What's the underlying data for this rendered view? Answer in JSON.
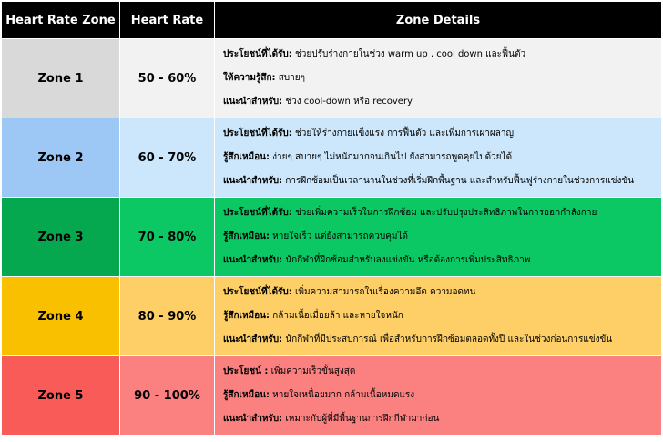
{
  "headers": [
    "Heart Rate Zone",
    "Heart Rate",
    "Zone Details"
  ],
  "rows": [
    {
      "zone": "Zone 1",
      "rate": "50 - 60%",
      "dark": "#d9d9d9",
      "light": "#f2f2f2",
      "details": [
        {
          "label": "ประโยชน์ที่ได้รับ:",
          "text": " ช่วยปรับร่างกายในช่วง warm up , cool down และฟื้นตัว"
        },
        {
          "label": "ให้ความรู้สึก:",
          "text": " สบายๆ"
        },
        {
          "label": "แนะนำสำหรับ:",
          "text": " ช่วง cool-down หรือ recovery"
        }
      ]
    },
    {
      "zone": "Zone 2",
      "rate": "60 - 70%",
      "dark": "#9dc8f5",
      "light": "#cce7fb",
      "details": [
        {
          "label": "ประโยชน์ที่ได้รับ:",
          "text": "  ช่วยให้ร่างกายแข็งแรง การฟื้นตัว และเพิ่มการเผาผลาญ"
        },
        {
          "label": "รู้สึกเหมือน:",
          "text": "  ง่ายๆ สบายๆ ไม่หนักมากจนเกินไป ยังสามารถพูดคุยไปด้วยได้"
        },
        {
          "label": "แนะนำสำหรับ:",
          "text": " การฝึกซ้อมเป็นเวลานานในช่วงที่เริ่มฝึกพื้นฐาน และสำหรับฟื้นฟูร่างกายในช่วงการแข่งขัน"
        }
      ]
    },
    {
      "zone": "Zone 3",
      "rate": "70 - 80%",
      "dark": "#06a84f",
      "light": "#0bc864",
      "details": [
        {
          "label": "ประโยชน์ที่ได้รับ:",
          "text": "  ช่วยเพิ่มความเร็วในการฝึกซ้อม และปรับปรุงประสิทธิภาพในการออกกำลังกาย"
        },
        {
          "label": "รู้สึกเหมือน:",
          "text": " หายใจเร็ว แต่ยังสามารถควบคุมได้"
        },
        {
          "label": "แนะนำสำหรับ:",
          "text": " นักกีฬาที่ฝึกซ้อมสำหรับลงแข่งขัน หรือต้องการเพิ่มประสิทธิภาพ"
        }
      ]
    },
    {
      "zone": "Zone 4",
      "rate": "80 - 90%",
      "dark": "#f9c000",
      "light": "#fdcf66",
      "details": [
        {
          "label": "ประโยชน์ที่ได้รับ:",
          "text": " เพิ่มความสามารถในเรื่องความอึด ความอดทน"
        },
        {
          "label": "รู้สึกเหมือน:",
          "text": " กล้ามเนื้อเมื่อยล้า และหายใจหนัก"
        },
        {
          "label": "แนะนำสำหรับ:",
          "text": " นักกีฬาที่มีประสบการณ์ เพื่อสำหรับการฝึกซ้อมตลอดทั้งปี และในช่วงก่อนการแข่งขัน"
        }
      ]
    },
    {
      "zone": "Zone 5",
      "rate": "90 - 100%",
      "dark": "#f95b59",
      "light": "#fb8080",
      "details": [
        {
          "label": "ประโยชน์ :",
          "text": " เพิ่มความเร็วขั้นสูงสุด"
        },
        {
          "label": "รู้สึกเหมือน:",
          "text": " หายใจเหนื่อยมาก กล้ามเนื้อหมดแรง"
        },
        {
          "label": "แนะนำสำหรับ:",
          "text": " เหมาะกับผู้ที่มีพื้นฐานการฝึกกีฬามาก่อน"
        }
      ]
    }
  ]
}
